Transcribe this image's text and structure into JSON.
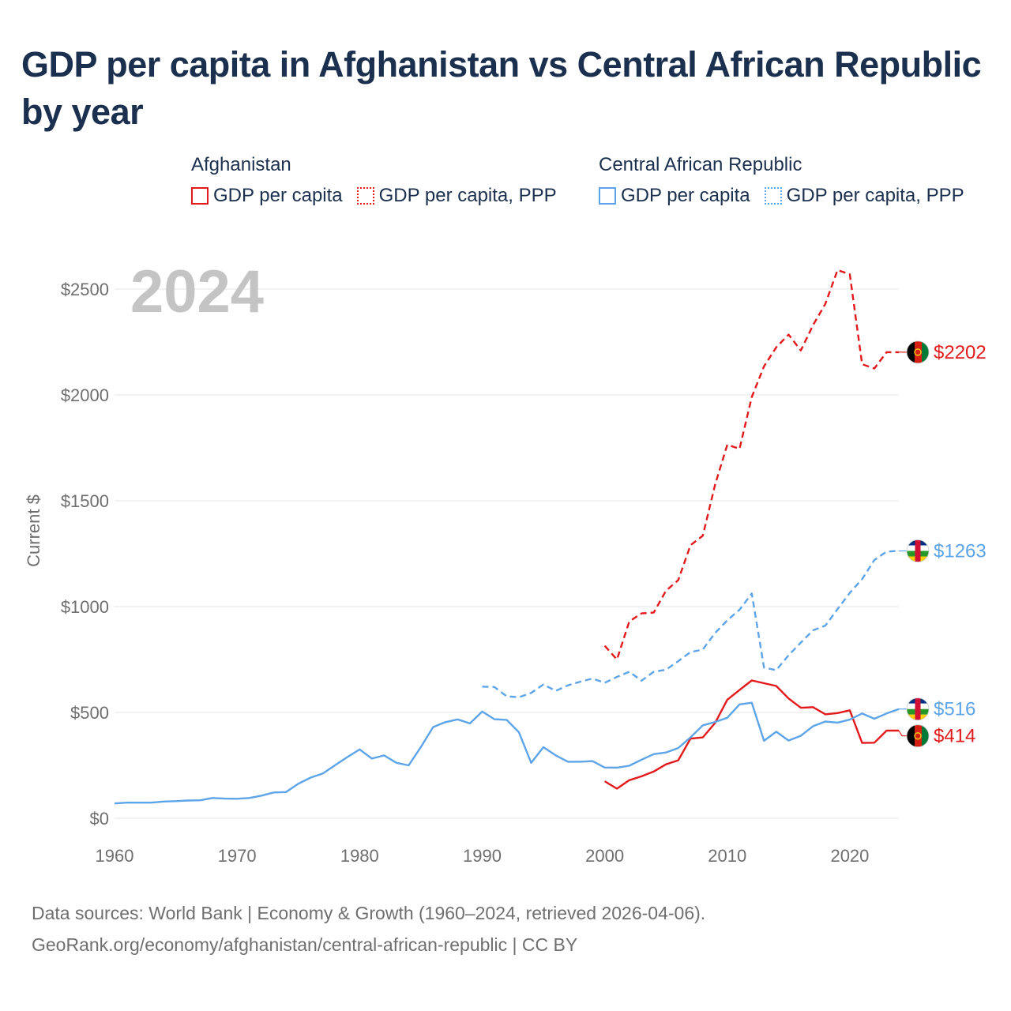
{
  "title": "GDP per capita in Afghanistan vs Central African Republic by year",
  "legend": [
    {
      "group": "Afghanistan",
      "color": "#e31a1c",
      "items": [
        {
          "label": "GDP per capita",
          "style": "solid"
        },
        {
          "label": "GDP per capita, PPP",
          "style": "dotted"
        }
      ]
    },
    {
      "group": "Central African Republic",
      "color": "#5da5e8",
      "items": [
        {
          "label": "GDP per capita",
          "style": "solid"
        },
        {
          "label": "GDP per capita, PPP",
          "style": "dotted"
        }
      ]
    }
  ],
  "source_line1": "Data sources: World Bank | Economy & Growth (1960–2024, retrieved 2026-04-06).",
  "source_line2": "GeoRank.org/economy/afghanistan/central-african-republic | CC BY",
  "chart_data": {
    "type": "line",
    "title": "GDP per capita in Afghanistan vs Central African Republic by year",
    "year_watermark": "2024",
    "xlabel": "",
    "ylabel": "Current $",
    "xlim": [
      1960,
      2024
    ],
    "ylim": [
      0,
      2600
    ],
    "x_ticks": [
      1960,
      1970,
      1980,
      1990,
      2000,
      2010,
      2020
    ],
    "y_ticks": [
      0,
      500,
      1000,
      1500,
      2000,
      2500
    ],
    "y_tick_labels": [
      "$0",
      "$500",
      "$1000",
      "$1500",
      "$2000",
      "$2500"
    ],
    "grid": true,
    "series": [
      {
        "name": "Afghanistan GDP per capita",
        "country": "Afghanistan",
        "color": "#e31a1c",
        "dash": false,
        "end_label": "$414",
        "flag": "afghanistan",
        "x": [
          2000,
          2001,
          2002,
          2003,
          2004,
          2005,
          2006,
          2007,
          2008,
          2009,
          2010,
          2011,
          2012,
          2013,
          2014,
          2015,
          2016,
          2017,
          2018,
          2019,
          2020,
          2021,
          2022,
          2023,
          2024
        ],
        "y": [
          175,
          140,
          180,
          198,
          221,
          255,
          274,
          376,
          382,
          450,
          560,
          606,
          651,
          638,
          625,
          566,
          522,
          525,
          491,
          497,
          510,
          356,
          357,
          414,
          414
        ]
      },
      {
        "name": "Afghanistan GDP per capita, PPP",
        "country": "Afghanistan",
        "color": "#e31a1c",
        "dash": true,
        "end_label": "$2202",
        "flag": "afghanistan",
        "x": [
          2000,
          2001,
          2002,
          2003,
          2004,
          2005,
          2006,
          2007,
          2008,
          2009,
          2010,
          2011,
          2012,
          2013,
          2014,
          2015,
          2016,
          2017,
          2018,
          2019,
          2020,
          2021,
          2022,
          2023,
          2024
        ],
        "y": [
          815,
          750,
          930,
          968,
          972,
          1075,
          1125,
          1290,
          1335,
          1575,
          1765,
          1745,
          1990,
          2135,
          2225,
          2285,
          2210,
          2330,
          2430,
          2590,
          2570,
          2145,
          2125,
          2202,
          2202
        ]
      },
      {
        "name": "Central African Republic GDP per capita",
        "country": "Central African Republic",
        "color": "#5da5e8",
        "dash": false,
        "end_label": "$516",
        "flag": "car",
        "x": [
          1960,
          1961,
          1962,
          1963,
          1964,
          1965,
          1966,
          1967,
          1968,
          1969,
          1970,
          1971,
          1972,
          1973,
          1974,
          1975,
          1976,
          1977,
          1978,
          1979,
          1980,
          1981,
          1982,
          1983,
          1984,
          1985,
          1986,
          1987,
          1988,
          1989,
          1990,
          1991,
          1992,
          1993,
          1994,
          1995,
          1996,
          1997,
          1998,
          1999,
          2000,
          2001,
          2002,
          2003,
          2004,
          2005,
          2006,
          2007,
          2008,
          2009,
          2010,
          2011,
          2012,
          2013,
          2014,
          2015,
          2016,
          2017,
          2018,
          2019,
          2020,
          2021,
          2022,
          2023,
          2024
        ],
        "y": [
          70,
          74,
          74,
          74,
          79,
          81,
          84,
          85,
          96,
          93,
          92,
          96,
          107,
          122,
          124,
          163,
          192,
          212,
          251,
          289,
          325,
          282,
          297,
          262,
          250,
          337,
          431,
          454,
          467,
          448,
          504,
          468,
          465,
          406,
          262,
          336,
          297,
          267,
          267,
          270,
          240,
          239,
          248,
          277,
          303,
          311,
          332,
          382,
          439,
          455,
          475,
          538,
          546,
          366,
          409,
          367,
          390,
          435,
          457,
          452,
          466,
          495,
          470,
          495,
          516
        ]
      },
      {
        "name": "Central African Republic GDP per capita, PPP",
        "country": "Central African Republic",
        "color": "#5da5e8",
        "dash": true,
        "end_label": "$1263",
        "flag": "car",
        "x": [
          1990,
          1991,
          1992,
          1993,
          1994,
          1995,
          1996,
          1997,
          1998,
          1999,
          2000,
          2001,
          2002,
          2003,
          2004,
          2005,
          2006,
          2007,
          2008,
          2009,
          2010,
          2011,
          2012,
          2013,
          2014,
          2015,
          2016,
          2017,
          2018,
          2019,
          2020,
          2021,
          2022,
          2023,
          2024
        ],
        "y": [
          622,
          620,
          576,
          572,
          592,
          632,
          602,
          628,
          645,
          660,
          640,
          668,
          692,
          650,
          692,
          702,
          742,
          785,
          797,
          875,
          935,
          985,
          1062,
          712,
          700,
          770,
          830,
          888,
          910,
          988,
          1065,
          1130,
          1220,
          1260,
          1263
        ]
      }
    ]
  }
}
